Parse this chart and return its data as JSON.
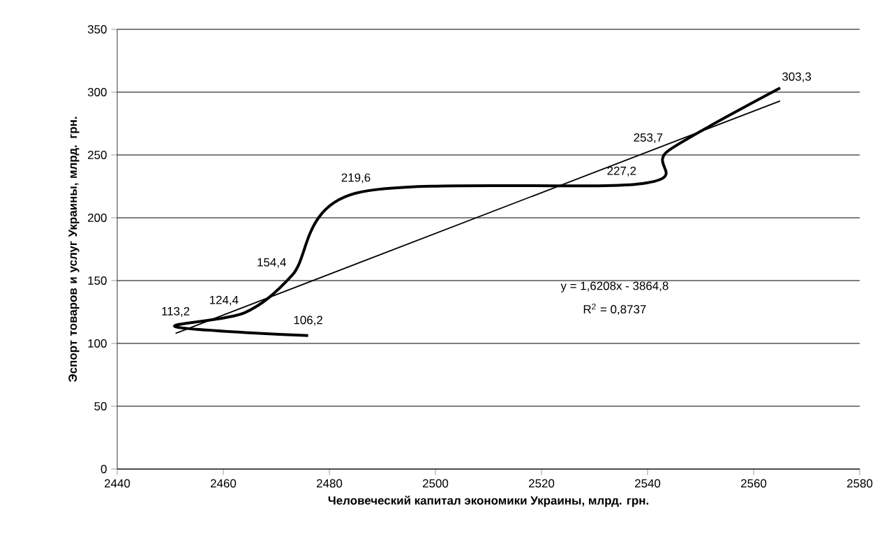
{
  "chart_data": {
    "type": "line",
    "xlabel": "Человеческий капитал экономики Украины, млрд. грн.",
    "ylabel": "Эспорт товаров и услуг Украины, млрд. грн.",
    "xlim": [
      2440,
      2580
    ],
    "xticks": [
      2440,
      2460,
      2480,
      2500,
      2520,
      2540,
      2560,
      2580
    ],
    "ylim": [
      0,
      350
    ],
    "yticks": [
      0,
      50,
      100,
      150,
      200,
      250,
      300,
      350
    ],
    "grid": "y",
    "marker": "none",
    "line_style": "solid",
    "series": [
      {
        "color": "#000000",
        "x": [
          2476,
          2451,
          2464,
          2473,
          2485,
          2539,
          2544,
          2565
        ],
        "values": [
          106.2,
          113.2,
          124.4,
          154.4,
          219.6,
          227.2,
          253.7,
          303.3
        ],
        "value_labels": [
          "106,2",
          "113,2",
          "124,4",
          "154,4",
          "219,6",
          "227,2",
          "253,7",
          "303,3"
        ]
      },
      {
        "type": "line",
        "color": "#000000",
        "x": [
          2451,
          2565
        ],
        "values": [
          108,
          293
        ]
      }
    ],
    "annotations": [
      "y = 1,6208x - 3864,8",
      "R$^{2}$ = 0,8737"
    ]
  }
}
